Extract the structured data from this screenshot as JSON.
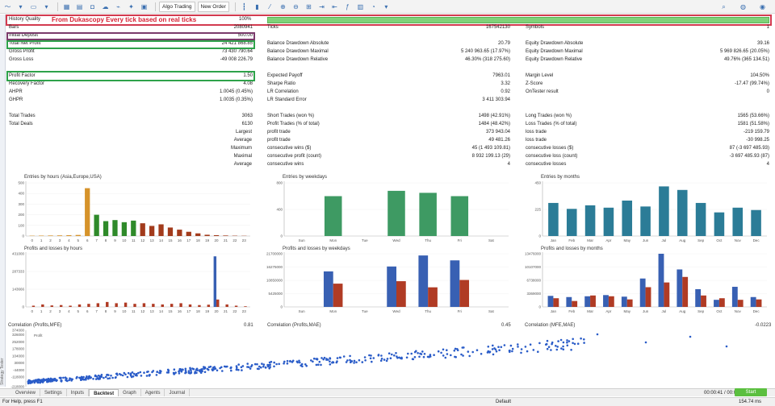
{
  "toolbar": {
    "algo_trading": "Algo Trading",
    "new_order": "New Order"
  },
  "banner": "From Dukascopy Every tick based on real ticks",
  "history_quality": {
    "label": "History Quality",
    "value": "100%",
    "fill": 1.0
  },
  "stats_left": [
    {
      "label": "Bars",
      "value": "2080941"
    },
    {
      "label": "Initial Deposit",
      "value": "500.00"
    },
    {
      "label": "Total Net Profit",
      "value": "24 421 868.85"
    },
    {
      "label": "Gross Profit",
      "value": "73 430 790.64"
    },
    {
      "label": "Gross Loss",
      "value": "-49 008 226.79"
    },
    {
      "label": "Profit Factor",
      "value": "1.50"
    },
    {
      "label": "Recovery Factor",
      "value": "4.08"
    },
    {
      "label": "AHPR",
      "value": "1.0045 (0.45%)"
    },
    {
      "label": "GHPR",
      "value": "1.0035 (0.35%)"
    },
    {
      "label": "Total Trades",
      "value": "3063"
    },
    {
      "label": "Total Deals",
      "value": "6130"
    }
  ],
  "stats_left_extra": [
    {
      "label": "Largest",
      "value": ""
    },
    {
      "label": "Average",
      "value": ""
    },
    {
      "label": "Maximum",
      "value": ""
    },
    {
      "label": "Maximal",
      "value": ""
    },
    {
      "label": "Average",
      "value": ""
    }
  ],
  "stats_mid": [
    {
      "label": "Ticks",
      "value": "167542130"
    },
    {
      "label": "",
      "value": ""
    },
    {
      "label": "Balance Drawdown Absolute",
      "value": "20.79"
    },
    {
      "label": "Balance Drawdown Maximal",
      "value": "5 240 963.65 (17.97%)"
    },
    {
      "label": "Balance Drawdown Relative",
      "value": "46.30% (318 275.60)"
    },
    {
      "label": "Expected Payoff",
      "value": "7963.01"
    },
    {
      "label": "Sharpe Ratio",
      "value": "3.32"
    },
    {
      "label": "LR Correlation",
      "value": "0.92"
    },
    {
      "label": "LR Standard Error",
      "value": "3 411 303.94"
    },
    {
      "label": "Short Trades (won %)",
      "value": "1498 (42.91%)"
    },
    {
      "label": "Profit Trades (% of total)",
      "value": "1484 (48.42%)"
    },
    {
      "label": "profit trade",
      "value": "373 943.04"
    },
    {
      "label": "profit trade",
      "value": "49 481.26"
    },
    {
      "label": "consecutive wins ($)",
      "value": "45 (1 493 109.81)"
    },
    {
      "label": "consecutive profit (count)",
      "value": "8 932 199.13 (29)"
    },
    {
      "label": "consecutive wins",
      "value": "4"
    }
  ],
  "stats_right": [
    {
      "label": "Symbols",
      "value": "1"
    },
    {
      "label": "",
      "value": ""
    },
    {
      "label": "Equity Drawdown Absolute",
      "value": "39.16"
    },
    {
      "label": "Equity Drawdown Maximal",
      "value": "5 969 826.65 (20.05%)"
    },
    {
      "label": "Equity Drawdown Relative",
      "value": "49.76% (365 134.51)"
    },
    {
      "label": "Margin Level",
      "value": "104.50%"
    },
    {
      "label": "Z-Score",
      "value": "-17.47 (99.74%)"
    },
    {
      "label": "OnTester result",
      "value": "0"
    },
    {
      "label": "",
      "value": ""
    },
    {
      "label": "Long Trades (won %)",
      "value": "1565 (53.66%)"
    },
    {
      "label": "Loss Trades (% of total)",
      "value": "1581 (51.58%)"
    },
    {
      "label": "loss trade",
      "value": "-219 159.79"
    },
    {
      "label": "loss trade",
      "value": "-30 998.25"
    },
    {
      "label": "consecutive losses ($)",
      "value": "87 (-3 697 485.93)"
    },
    {
      "label": "consecutive loss (count)",
      "value": "-3 697 485.93 (87)"
    },
    {
      "label": "consecutive losses",
      "value": "4"
    }
  ],
  "charts": {
    "hours_title": "Entries by hours (Asia,Europe,USA)",
    "weekdays_title": "Entries by weekdays",
    "months_title": "Entries by months",
    "pl_hours_title": "Profits and losses by hours",
    "pl_weekdays_title": "Profits and losses by weekdays",
    "pl_months_title": "Profits and losses by months",
    "corr_mfe_label": "Correlation (Profits,MFE)",
    "corr_mfe_value": "0.81",
    "corr_mae_label": "Correlation (Profits,MAE)",
    "corr_mae_value": "0.45",
    "corr_mfe_mae_label": "Correlation (MFE,MAE)",
    "corr_mfe_mae_value": "-0.0223",
    "scatter_legend": "Profit"
  },
  "chart_data": [
    {
      "type": "bar",
      "title": "Entries by hours (Asia,Europe,USA)",
      "categories": [
        "0",
        "1",
        "2",
        "3",
        "4",
        "5",
        "6",
        "7",
        "8",
        "9",
        "10",
        "11",
        "12",
        "13",
        "14",
        "15",
        "16",
        "17",
        "18",
        "19",
        "20",
        "21",
        "22",
        "23"
      ],
      "values": [
        3,
        4,
        5,
        6,
        8,
        10,
        450,
        200,
        140,
        150,
        130,
        145,
        120,
        95,
        110,
        80,
        60,
        40,
        25,
        12,
        8,
        5,
        3,
        2
      ],
      "ylim": [
        0,
        500
      ]
    },
    {
      "type": "bar",
      "title": "Entries by weekdays",
      "categories": [
        "Sun",
        "Mon",
        "Tue",
        "Wed",
        "Thu",
        "Fri",
        "Sat"
      ],
      "values": [
        0,
        600,
        0,
        680,
        650,
        600,
        0
      ],
      "ylim": [
        0,
        800
      ]
    },
    {
      "type": "bar",
      "title": "Entries by months",
      "categories": [
        "Jan",
        "Feb",
        "Mar",
        "Apr",
        "May",
        "Jun",
        "Jul",
        "Aug",
        "Sep",
        "Oct",
        "Nov",
        "Dec"
      ],
      "values": [
        280,
        230,
        260,
        240,
        300,
        250,
        420,
        390,
        280,
        200,
        240,
        220
      ],
      "ylim": [
        0,
        450
      ]
    },
    {
      "type": "bar",
      "title": "Profits and losses by hours",
      "categories": [
        "0",
        "1",
        "2",
        "3",
        "4",
        "5",
        "6",
        "7",
        "8",
        "9",
        "10",
        "11",
        "12",
        "13",
        "14",
        "15",
        "16",
        "17",
        "18",
        "19",
        "20",
        "21",
        "22",
        "23"
      ],
      "series": [
        {
          "values": [
            0,
            0,
            0,
            0,
            0,
            0,
            0,
            0,
            0,
            0,
            0,
            0,
            0,
            0,
            0,
            0,
            0,
            0,
            0,
            0,
            410000,
            0,
            0,
            0
          ]
        },
        {
          "values": [
            10000,
            20000,
            12000,
            15000,
            10000,
            20000,
            25000,
            30000,
            40000,
            30000,
            35000,
            25000,
            30000,
            25000,
            20000,
            25000,
            30000,
            20000,
            15000,
            18000,
            60000,
            20000,
            10000,
            5000
          ]
        }
      ],
      "ylim": [
        0,
        431000
      ]
    },
    {
      "type": "bar",
      "title": "Profits and losses by weekdays",
      "categories": [
        "Sun",
        "Mon",
        "Tue",
        "Wed",
        "Thu",
        "Fri",
        "Sat"
      ],
      "series": [
        {
          "values": [
            0,
            14500000,
            0,
            16500000,
            21000000,
            19000000,
            0
          ]
        },
        {
          "values": [
            0,
            9500000,
            0,
            10500000,
            8000000,
            11000000,
            0
          ]
        }
      ],
      "ylim": [
        0,
        21700000
      ]
    },
    {
      "type": "bar",
      "title": "Profits and losses by months",
      "categories": [
        "Jan",
        "Feb",
        "Mar",
        "Apr",
        "May",
        "Jun",
        "Jul",
        "Aug",
        "Sep",
        "Oct",
        "Nov",
        "Dec"
      ],
      "series": [
        {
          "values": [
            2800000,
            2500000,
            2700000,
            3000000,
            2600000,
            7200000,
            13476000,
            9500000,
            4500000,
            1800000,
            5100000,
            2500000
          ]
        },
        {
          "values": [
            2200000,
            1500000,
            2900000,
            2700000,
            1900000,
            5000000,
            6200000,
            7600000,
            2900000,
            2200000,
            1800000,
            1900000
          ]
        }
      ],
      "ylim": [
        0,
        13476000
      ]
    },
    {
      "type": "scatter",
      "title": "Correlation (Profits,MFE)",
      "ylim": [
        -218000,
        374000
      ],
      "series": [
        {
          "name": "Profit"
        }
      ]
    }
  ],
  "tabs": [
    "Overview",
    "Settings",
    "Inputs",
    "Backtest",
    "Graph",
    "Agents",
    "Journal"
  ],
  "active_tab": "Backtest",
  "status": {
    "help": "For Help, press F1",
    "profile": "Default",
    "time": "00:00:41 / 00:00:41",
    "ms": "154.74 ms",
    "start": "Start"
  },
  "side_label": "Strategy Tester",
  "colors": {
    "accent_red": "#d23a4f",
    "accent_green": "#2ea24a",
    "bar_orange": "#d6932b",
    "bar_green": "#2f8a2a",
    "bar_red": "#a23b1c",
    "weekday_green": "#3e9a63",
    "month_teal": "#2b7c97",
    "pl_blue": "#3860b3",
    "pl_red": "#b03b24",
    "scatter_blue": "#2a5cc8"
  }
}
